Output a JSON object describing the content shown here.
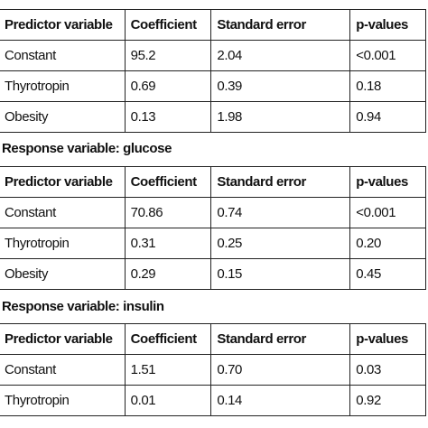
{
  "tables": [
    {
      "header": [
        "Predictor variable",
        "Coefficient",
        "Standard error",
        "p-values"
      ],
      "rows": [
        [
          "Constant",
          "95.2",
          "2.04",
          "<0.001"
        ],
        [
          "Thyrotropin",
          "0.69",
          "0.39",
          "0.18"
        ],
        [
          "Obesity",
          "0.13",
          "1.98",
          "0.94"
        ]
      ]
    },
    {
      "caption": "Response variable: glucose",
      "header": [
        "Predictor variable",
        "Coefficient",
        "Standard error",
        "p-values"
      ],
      "rows": [
        [
          "Constant",
          "70.86",
          "0.74",
          "<0.001"
        ],
        [
          "Thyrotropin",
          "0.31",
          "0.25",
          "0.20"
        ],
        [
          "Obesity",
          "0.29",
          "0.15",
          "0.45"
        ]
      ]
    },
    {
      "caption": "Response variable: insulin",
      "header": [
        "Predictor variable",
        "Coefficient",
        "Standard error",
        "p-values"
      ],
      "rows": [
        [
          "Constant",
          "1.51",
          "0.70",
          "0.03"
        ],
        [
          "Thyrotropin",
          "0.01",
          "0.14",
          "0.92"
        ]
      ]
    }
  ]
}
